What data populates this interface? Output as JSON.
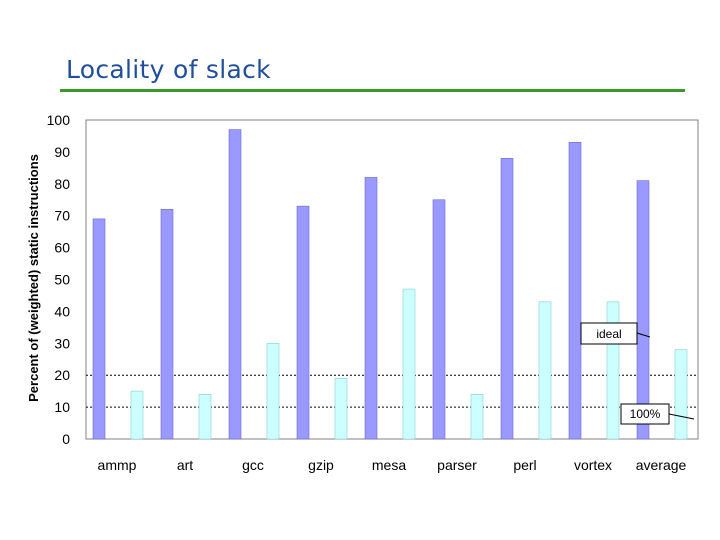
{
  "slide": {
    "title": "Locality of slack"
  },
  "colors": {
    "title": "#1f4e9b",
    "rule": "#3a9b2b",
    "series_a": "#9999ff",
    "series_b": "#ccffff",
    "frame": "#808080",
    "reference_line": "#000000"
  },
  "chart_data": {
    "type": "bar",
    "title": "",
    "xlabel": "",
    "ylabel": "Percent of (weighted) static instructions",
    "ylim": [
      0,
      100
    ],
    "yticks": [
      0,
      10,
      20,
      30,
      40,
      50,
      60,
      70,
      80,
      90,
      100
    ],
    "categories": [
      "ammp",
      "art",
      "gcc",
      "gzip",
      "mesa",
      "parser",
      "perl",
      "vortex",
      "average"
    ],
    "series": [
      {
        "values": [
          69,
          72,
          97,
          73,
          82,
          75,
          88,
          93,
          81
        ]
      },
      {
        "values": [
          15,
          14,
          30,
          19,
          47,
          14,
          43,
          43,
          28
        ]
      }
    ],
    "reference_lines": [
      20,
      10
    ],
    "annotations": [
      {
        "text": "ideal"
      },
      {
        "text": "100%"
      }
    ],
    "grid": false,
    "legend": "none"
  }
}
